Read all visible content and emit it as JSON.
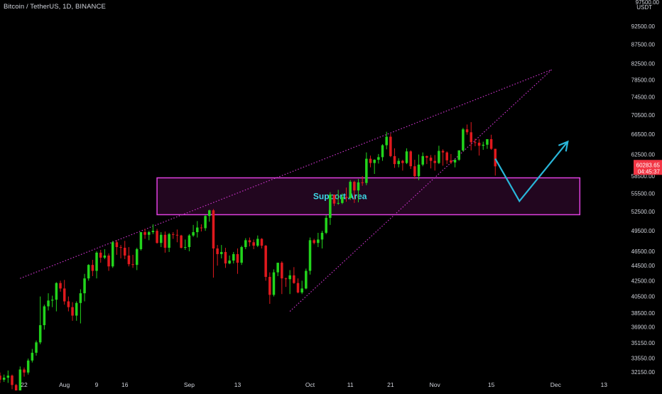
{
  "header": {
    "symbol_line": "Bitcoin / TetherUS, 1D, BINANCE"
  },
  "price_scale": {
    "currency_partial": "97500.00",
    "currency": "USDT",
    "ticks": [
      "92500.00",
      "87500.00",
      "82500.00",
      "78500.00",
      "74500.00",
      "70500.00",
      "66500.00",
      "62500.00",
      "58500.00",
      "55500.00",
      "52500.00",
      "49500.00",
      "46500.00",
      "44500.00",
      "42500.00",
      "40500.00",
      "38500.00",
      "36900.00",
      "35150.00",
      "33550.00",
      "32150.00"
    ],
    "last_price": "60283.65",
    "countdown": "04:45:37",
    "last_price_color": "#f23645"
  },
  "time_axis": {
    "labels": [
      "22",
      "Aug",
      "9",
      "16",
      "Sep",
      "13",
      "Oct",
      "11",
      "21",
      "Nov",
      "15",
      "Dec",
      "13"
    ]
  },
  "annotations": {
    "support_label": "Support Area",
    "support_zone": {
      "low": 52000,
      "high": 58200,
      "start": "Aug 24",
      "end": "Dec 7"
    },
    "channel_upper": [
      [
        "Jul 21",
        42800
      ],
      [
        "Nov 30",
        81000
      ]
    ],
    "channel_lower": [
      [
        "Sep 26",
        38700
      ],
      [
        "Nov 30",
        81000
      ]
    ],
    "projection": [
      [
        "Nov 16",
        61700
      ],
      [
        "Nov 22",
        54200
      ],
      [
        "Dec 4",
        65000
      ]
    ]
  },
  "colors": {
    "background": "#000000",
    "up": "#22d41c",
    "down": "#e0191d",
    "channel": "#cc33cc",
    "zone_border": "#e040e0",
    "zone_fill": "#22061f",
    "support_text": "#3dd8e6",
    "projection": "#29b6d9",
    "axis_text": "#d1d4dc"
  },
  "chart_data": {
    "type": "candlestick",
    "title": "Bitcoin / TetherUS, 1D, BINANCE",
    "x_range": [
      "Jul 16",
      "Dec 20"
    ],
    "ylim": [
      31600,
      98500
    ],
    "y_scale": "log",
    "grid": false,
    "fields": [
      "date",
      "open",
      "high",
      "low",
      "close"
    ],
    "candles": [
      [
        "Jul 16",
        31800,
        32100,
        31100,
        31400
      ],
      [
        "Jul 17",
        31400,
        31900,
        31200,
        31600
      ],
      [
        "Jul 18",
        31600,
        32300,
        31100,
        31800
      ],
      [
        "Jul 19",
        31800,
        31900,
        30500,
        30900
      ],
      [
        "Jul 20",
        30900,
        31000,
        29800,
        30300
      ],
      [
        "Jul 21",
        30300,
        32700,
        30100,
        32400
      ],
      [
        "Jul 22",
        32400,
        32600,
        31700,
        32100
      ],
      [
        "Jul 23",
        32100,
        33500,
        31900,
        33300
      ],
      [
        "Jul 24",
        33300,
        34500,
        33100,
        34100
      ],
      [
        "Jul 25",
        34100,
        35400,
        33800,
        35200
      ],
      [
        "Jul 26",
        35200,
        40500,
        35000,
        37100
      ],
      [
        "Jul 27",
        37100,
        39500,
        36600,
        39300
      ],
      [
        "Jul 28",
        39300,
        40900,
        38800,
        40000
      ],
      [
        "Jul 29",
        40000,
        40600,
        39200,
        40100
      ],
      [
        "Jul 30",
        40100,
        42300,
        38700,
        42200
      ],
      [
        "Jul 31",
        42200,
        42500,
        41100,
        41500
      ],
      [
        "Aug 1",
        41500,
        42600,
        39500,
        39900
      ],
      [
        "Aug 2",
        39900,
        40500,
        38700,
        39200
      ],
      [
        "Aug 3",
        39200,
        39800,
        37600,
        38200
      ],
      [
        "Aug 4",
        38200,
        39900,
        37600,
        39700
      ],
      [
        "Aug 5",
        39700,
        41400,
        37300,
        40900
      ],
      [
        "Aug 6",
        40900,
        43400,
        39900,
        42800
      ],
      [
        "Aug 7",
        42800,
        44700,
        42500,
        44600
      ],
      [
        "Aug 8",
        44600,
        45300,
        43100,
        43800
      ],
      [
        "Aug 9",
        43800,
        46500,
        42800,
        46300
      ],
      [
        "Aug 10",
        46300,
        46700,
        44900,
        45600
      ],
      [
        "Aug 11",
        45600,
        46800,
        45400,
        45900
      ],
      [
        "Aug 12",
        45900,
        46200,
        43800,
        44400
      ],
      [
        "Aug 13",
        44400,
        48000,
        44200,
        47800
      ],
      [
        "Aug 14",
        47800,
        48100,
        46000,
        47100
      ],
      [
        "Aug 15",
        47100,
        47400,
        45500,
        47000
      ],
      [
        "Aug 16",
        47000,
        48000,
        45400,
        45900
      ],
      [
        "Aug 17",
        45900,
        47100,
        44400,
        44700
      ],
      [
        "Aug 18",
        44700,
        46000,
        44200,
        44600
      ],
      [
        "Aug 19",
        44600,
        47000,
        43900,
        46800
      ],
      [
        "Aug 20",
        46800,
        49300,
        46600,
        49300
      ],
      [
        "Aug 21",
        49300,
        49800,
        48300,
        48900
      ],
      [
        "Aug 22",
        48900,
        49500,
        48100,
        49300
      ],
      [
        "Aug 23",
        49300,
        50500,
        49000,
        49500
      ],
      [
        "Aug 24",
        49500,
        49800,
        47600,
        47700
      ],
      [
        "Aug 25",
        47700,
        49300,
        47100,
        48900
      ],
      [
        "Aug 26",
        48900,
        49400,
        46300,
        47000
      ],
      [
        "Aug 27",
        47000,
        49200,
        46400,
        49000
      ],
      [
        "Aug 28",
        49000,
        49300,
        48300,
        48900
      ],
      [
        "Aug 29",
        48900,
        49700,
        47800,
        48800
      ],
      [
        "Aug 30",
        48800,
        48900,
        46900,
        47000
      ],
      [
        "Aug 31",
        47000,
        48200,
        46700,
        47100
      ],
      [
        "Sep 1",
        47100,
        49000,
        46500,
        48800
      ],
      [
        "Sep 2",
        48800,
        50400,
        48600,
        49300
      ],
      [
        "Sep 3",
        49300,
        51000,
        48500,
        50000
      ],
      [
        "Sep 4",
        50000,
        50500,
        49400,
        49900
      ],
      [
        "Sep 5",
        49900,
        51900,
        49500,
        51800
      ],
      [
        "Sep 6",
        51800,
        52800,
        50900,
        52700
      ],
      [
        "Sep 7",
        52700,
        52900,
        42900,
        46900
      ],
      [
        "Sep 8",
        46900,
        47400,
        44500,
        46100
      ],
      [
        "Sep 9",
        46100,
        47400,
        45500,
        46400
      ],
      [
        "Sep 10",
        46400,
        47000,
        44200,
        44800
      ],
      [
        "Sep 11",
        44800,
        45900,
        44700,
        45200
      ],
      [
        "Sep 12",
        45200,
        46400,
        44800,
        46100
      ],
      [
        "Sep 13",
        46100,
        46900,
        43400,
        44900
      ],
      [
        "Sep 14",
        44900,
        47300,
        44600,
        47100
      ],
      [
        "Sep 15",
        47100,
        48400,
        46800,
        48100
      ],
      [
        "Sep 16",
        48100,
        48500,
        47200,
        47800
      ],
      [
        "Sep 17",
        47800,
        48200,
        46800,
        47300
      ],
      [
        "Sep 18",
        47300,
        48800,
        47100,
        48300
      ],
      [
        "Sep 19",
        48300,
        48400,
        46900,
        47300
      ],
      [
        "Sep 20",
        47300,
        47400,
        42500,
        43000
      ],
      [
        "Sep 21",
        43000,
        43600,
        39600,
        40700
      ],
      [
        "Sep 22",
        40700,
        44000,
        40500,
        43600
      ],
      [
        "Sep 23",
        43600,
        44900,
        43100,
        44900
      ],
      [
        "Sep 24",
        44900,
        45100,
        40800,
        42800
      ],
      [
        "Sep 25",
        42800,
        42900,
        41700,
        42700
      ],
      [
        "Sep 26",
        42700,
        43900,
        40800,
        43200
      ],
      [
        "Sep 27",
        43200,
        44300,
        42100,
        42200
      ],
      [
        "Sep 28",
        42200,
        42800,
        40900,
        41000
      ],
      [
        "Sep 29",
        41000,
        42500,
        40800,
        41500
      ],
      [
        "Sep 30",
        41500,
        44100,
        41400,
        43800
      ],
      [
        "Oct 1",
        43800,
        48500,
        43300,
        48100
      ],
      [
        "Oct 2",
        48100,
        48300,
        47500,
        47700
      ],
      [
        "Oct 3",
        47700,
        49200,
        47100,
        48200
      ],
      [
        "Oct 4",
        48200,
        49500,
        46900,
        49200
      ],
      [
        "Oct 5",
        49200,
        51900,
        49000,
        51500
      ],
      [
        "Oct 6",
        51500,
        55700,
        50400,
        55300
      ],
      [
        "Oct 7",
        55300,
        55300,
        53400,
        53800
      ],
      [
        "Oct 8",
        53800,
        56100,
        53600,
        53900
      ],
      [
        "Oct 9",
        53900,
        55500,
        53700,
        54900
      ],
      [
        "Oct 10",
        54900,
        56500,
        54100,
        54700
      ],
      [
        "Oct 11",
        54700,
        57800,
        54400,
        57500
      ],
      [
        "Oct 12",
        57500,
        57700,
        53900,
        56000
      ],
      [
        "Oct 13",
        56000,
        58000,
        54000,
        57400
      ],
      [
        "Oct 14",
        57400,
        58500,
        56800,
        57300
      ],
      [
        "Oct 15",
        57300,
        62900,
        56900,
        61700
      ],
      [
        "Oct 16",
        61700,
        62300,
        60100,
        60900
      ],
      [
        "Oct 17",
        60900,
        61600,
        58900,
        61500
      ],
      [
        "Oct 18",
        61500,
        62600,
        60800,
        62000
      ],
      [
        "Oct 19",
        62000,
        64500,
        61300,
        64300
      ],
      [
        "Oct 20",
        64300,
        67000,
        63500,
        66000
      ],
      [
        "Oct 21",
        66000,
        66600,
        62000,
        62200
      ],
      [
        "Oct 22",
        62200,
        63700,
        60000,
        60700
      ],
      [
        "Oct 23",
        60700,
        61800,
        60100,
        61300
      ],
      [
        "Oct 24",
        61300,
        61500,
        59500,
        60900
      ],
      [
        "Oct 25",
        60900,
        63700,
        60700,
        63100
      ],
      [
        "Oct 26",
        63100,
        63300,
        59800,
        60300
      ],
      [
        "Oct 27",
        60300,
        61500,
        58000,
        58500
      ],
      [
        "Oct 28",
        58500,
        62500,
        57800,
        60600
      ],
      [
        "Oct 29",
        60600,
        62900,
        60300,
        62200
      ],
      [
        "Oct 30",
        62200,
        62300,
        60700,
        61900
      ],
      [
        "Oct 31",
        61900,
        62400,
        59900,
        61300
      ],
      [
        "Nov 1",
        61300,
        62400,
        59500,
        60900
      ],
      [
        "Nov 2",
        60900,
        64200,
        60700,
        63200
      ],
      [
        "Nov 3",
        63200,
        63500,
        60400,
        62900
      ],
      [
        "Nov 4",
        62900,
        63100,
        60700,
        61400
      ],
      [
        "Nov 5",
        61400,
        62600,
        60700,
        61000
      ],
      [
        "Nov 6",
        61000,
        61600,
        60100,
        61500
      ],
      [
        "Nov 7",
        61500,
        63300,
        61300,
        63300
      ],
      [
        "Nov 8",
        63300,
        67800,
        63100,
        67500
      ],
      [
        "Nov 9",
        67500,
        68500,
        66400,
        66900
      ],
      [
        "Nov 10",
        66900,
        69000,
        63300,
        64900
      ],
      [
        "Nov 11",
        64900,
        65600,
        64100,
        64800
      ],
      [
        "Nov 12",
        64800,
        65500,
        62300,
        64200
      ],
      [
        "Nov 13",
        64200,
        65000,
        63400,
        64400
      ],
      [
        "Nov 14",
        64400,
        65500,
        63600,
        65500
      ],
      [
        "Nov 15",
        65500,
        66400,
        63400,
        63600
      ],
      [
        "Nov 16",
        63600,
        63600,
        58600,
        60283.65
      ]
    ]
  }
}
